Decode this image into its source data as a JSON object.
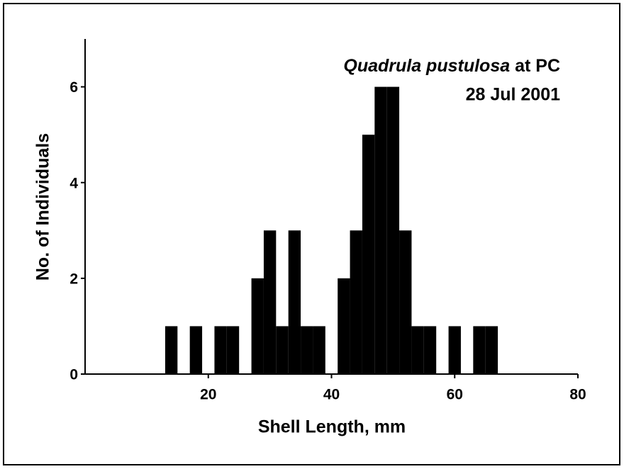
{
  "chart_data": {
    "type": "histogram",
    "title": "Quadrula pustulosa",
    "title_suffix": "at PC",
    "subtitle": "28 Jul 2001",
    "x_label": "Shell Length, mm",
    "y_label": "No. of Individuals",
    "bins": [
      13,
      15,
      17,
      19,
      21,
      23,
      25,
      27,
      29,
      31,
      33,
      35,
      37,
      39,
      41,
      43,
      45,
      47,
      49,
      51,
      53,
      55,
      57,
      59,
      61,
      63,
      65,
      67
    ],
    "values": [
      1,
      0,
      1,
      0,
      1,
      1,
      0,
      2,
      3,
      1,
      3,
      1,
      1,
      0,
      2,
      3,
      5,
      6,
      6,
      3,
      1,
      1,
      0,
      1,
      0,
      1,
      1
    ],
    "color": "#000000",
    "xlim": [
      0,
      80
    ],
    "xticks": [
      20,
      40,
      60,
      80
    ],
    "ylim": [
      0,
      7
    ],
    "yticks": [
      0,
      2,
      4,
      6
    ]
  }
}
